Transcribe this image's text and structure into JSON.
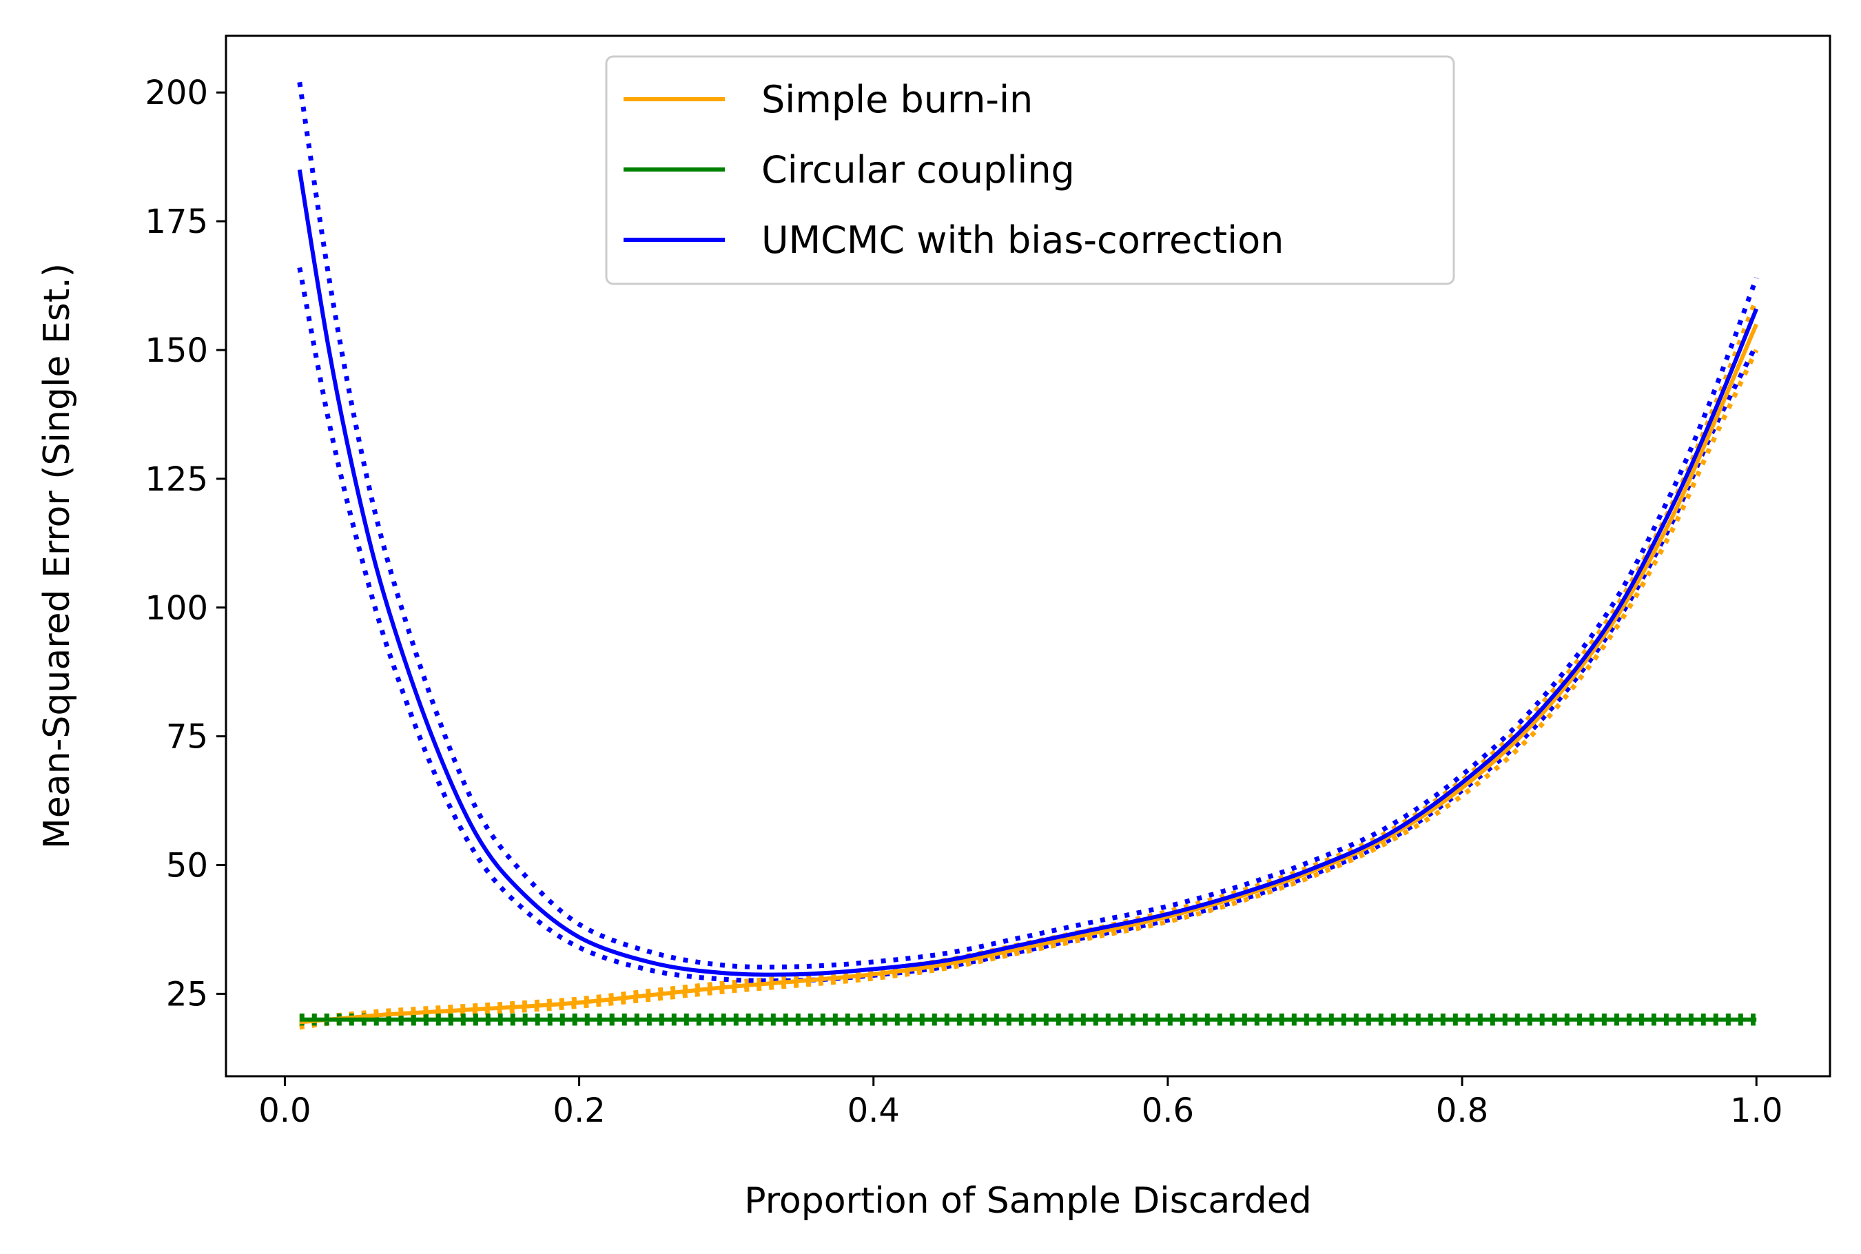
{
  "chart_data": {
    "type": "line",
    "title": "",
    "xlabel": "Proportion of Sample Discarded",
    "ylabel": "Mean-Squared Error (Single Est.)",
    "xlim": [
      -0.04,
      1.05
    ],
    "ylim": [
      9,
      211
    ],
    "xticks": [
      0.0,
      0.2,
      0.4,
      0.6,
      0.8,
      1.0
    ],
    "xtick_labels": [
      "0.0",
      "0.2",
      "0.4",
      "0.6",
      "0.8",
      "1.0"
    ],
    "yticks": [
      25,
      50,
      75,
      100,
      125,
      150,
      175,
      200
    ],
    "ytick_labels": [
      "25",
      "50",
      "75",
      "100",
      "125",
      "150",
      "175",
      "200"
    ],
    "grid": false,
    "legend": {
      "position": "top-center"
    },
    "x": [
      0.01,
      0.03,
      0.05,
      0.07,
      0.1,
      0.13,
      0.16,
      0.2,
      0.25,
      0.3,
      0.35,
      0.4,
      0.45,
      0.5,
      0.55,
      0.6,
      0.65,
      0.7,
      0.75,
      0.8,
      0.85,
      0.9,
      0.94,
      0.97,
      1.0
    ],
    "series": [
      {
        "name": "Simple burn-in",
        "color": "#ffa500",
        "values": [
          19.5,
          20.0,
          20.5,
          21.0,
          21.5,
          22.0,
          22.5,
          23.3,
          24.8,
          26.3,
          27.5,
          28.8,
          30.8,
          33.8,
          36.8,
          40.0,
          44.0,
          49.0,
          55.5,
          65.0,
          78.0,
          96.0,
          116.0,
          135.0,
          155.0
        ],
        "band_lower": [
          18.5,
          19.3,
          19.8,
          20.3,
          20.8,
          21.3,
          21.8,
          22.6,
          24.0,
          25.5,
          26.7,
          28.0,
          30.0,
          33.0,
          36.0,
          39.0,
          43.0,
          48.0,
          54.5,
          63.5,
          76.0,
          94.0,
          113.5,
          132.0,
          150.0
        ],
        "band_upper": [
          20.5,
          20.7,
          21.2,
          21.7,
          22.2,
          22.7,
          23.2,
          24.0,
          25.6,
          27.1,
          28.3,
          29.6,
          31.6,
          34.6,
          37.6,
          41.0,
          45.0,
          50.0,
          56.5,
          66.5,
          80.0,
          98.0,
          118.5,
          138.0,
          160.0
        ]
      },
      {
        "name": "Circular coupling",
        "color": "#008000",
        "values": [
          20,
          20,
          20,
          20,
          20,
          20,
          20,
          20,
          20,
          20,
          20,
          20,
          20,
          20,
          20,
          20,
          20,
          20,
          20,
          20,
          20,
          20,
          20,
          20,
          20
        ],
        "band_lower": [
          19.3,
          19.3,
          19.3,
          19.3,
          19.3,
          19.3,
          19.3,
          19.3,
          19.3,
          19.3,
          19.3,
          19.3,
          19.3,
          19.3,
          19.3,
          19.3,
          19.3,
          19.3,
          19.3,
          19.3,
          19.3,
          19.3,
          19.3,
          19.3,
          19.3
        ],
        "band_upper": [
          20.7,
          20.7,
          20.7,
          20.7,
          20.7,
          20.7,
          20.7,
          20.7,
          20.7,
          20.7,
          20.7,
          20.7,
          20.7,
          20.7,
          20.7,
          20.7,
          20.7,
          20.7,
          20.7,
          20.7,
          20.7,
          20.7,
          20.7,
          20.7,
          20.7
        ]
      },
      {
        "name": "UMCMC with bias-correction",
        "color": "#0000ff",
        "values": [
          185,
          150,
          122,
          100,
          75,
          56,
          45,
          36,
          31,
          29,
          28.8,
          29.8,
          31.5,
          34.5,
          37.5,
          40.5,
          44.5,
          49.5,
          56.0,
          66.0,
          79.0,
          97.0,
          118.0,
          137.0,
          158.0
        ],
        "band_lower": [
          166,
          136,
          112,
          92,
          69,
          52,
          42,
          34,
          29.5,
          27.8,
          27.6,
          28.6,
          30.3,
          33.2,
          36.3,
          39.3,
          43.3,
          48.3,
          54.8,
          64.5,
          77.0,
          95.0,
          115.0,
          134.0,
          151.0
        ],
        "band_upper": [
          202,
          164,
          133,
          109,
          82,
          61,
          49,
          38.5,
          33,
          30.5,
          30.3,
          31.2,
          32.9,
          35.9,
          39.0,
          42.0,
          46.0,
          51.0,
          57.5,
          67.5,
          81.0,
          99.5,
          121.0,
          141.0,
          164.0
        ]
      }
    ]
  }
}
